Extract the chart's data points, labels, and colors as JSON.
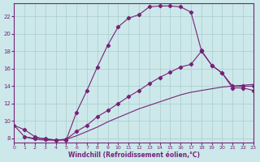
{
  "background_color": "#cce8ea",
  "grid_color": "#aacccc",
  "line_color": "#772277",
  "xlabel": "Windchill (Refroidissement éolien,°C)",
  "xlim": [
    0,
    23
  ],
  "ylim": [
    7.5,
    23.5
  ],
  "xticks": [
    0,
    1,
    2,
    3,
    4,
    5,
    6,
    7,
    8,
    9,
    10,
    11,
    12,
    13,
    14,
    15,
    16,
    17,
    18,
    19,
    20,
    21,
    22,
    23
  ],
  "yticks": [
    8,
    10,
    12,
    14,
    16,
    18,
    20,
    22
  ],
  "series1_x": [
    0,
    1,
    2,
    3,
    4,
    5,
    6,
    7,
    8,
    9,
    10,
    11,
    12,
    13,
    14,
    15,
    16,
    17,
    18,
    19,
    20,
    21,
    22,
    23
  ],
  "series1_y": [
    9.5,
    9.0,
    8.2,
    7.9,
    7.8,
    7.8,
    11.0,
    13.5,
    16.2,
    18.7,
    20.8,
    21.8,
    22.2,
    23.1,
    23.2,
    23.2,
    23.1,
    22.5,
    18.1,
    16.4,
    15.5,
    13.8,
    13.8,
    13.5
  ],
  "series2_x": [
    1,
    2,
    3,
    4,
    5,
    6,
    7,
    8,
    9,
    10,
    11,
    12,
    13,
    14,
    15,
    16,
    17,
    18,
    19,
    20,
    21,
    22,
    23
  ],
  "series2_y": [
    8.2,
    8.0,
    8.0,
    7.8,
    7.9,
    8.8,
    9.5,
    10.5,
    11.2,
    12.0,
    12.8,
    13.5,
    14.3,
    15.0,
    15.6,
    16.2,
    16.5,
    18.0,
    16.4,
    15.5,
    14.0,
    14.0,
    14.0
  ],
  "series3_x": [
    0,
    1,
    2,
    3,
    4,
    5,
    6,
    7,
    8,
    9,
    10,
    11,
    12,
    13,
    14,
    15,
    16,
    17,
    18,
    19,
    20,
    21,
    22,
    23
  ],
  "series3_y": [
    9.5,
    8.2,
    7.9,
    7.8,
    7.8,
    7.9,
    8.3,
    8.8,
    9.3,
    9.9,
    10.4,
    10.9,
    11.4,
    11.8,
    12.2,
    12.6,
    13.0,
    13.3,
    13.5,
    13.7,
    13.9,
    14.0,
    14.1,
    14.2
  ]
}
